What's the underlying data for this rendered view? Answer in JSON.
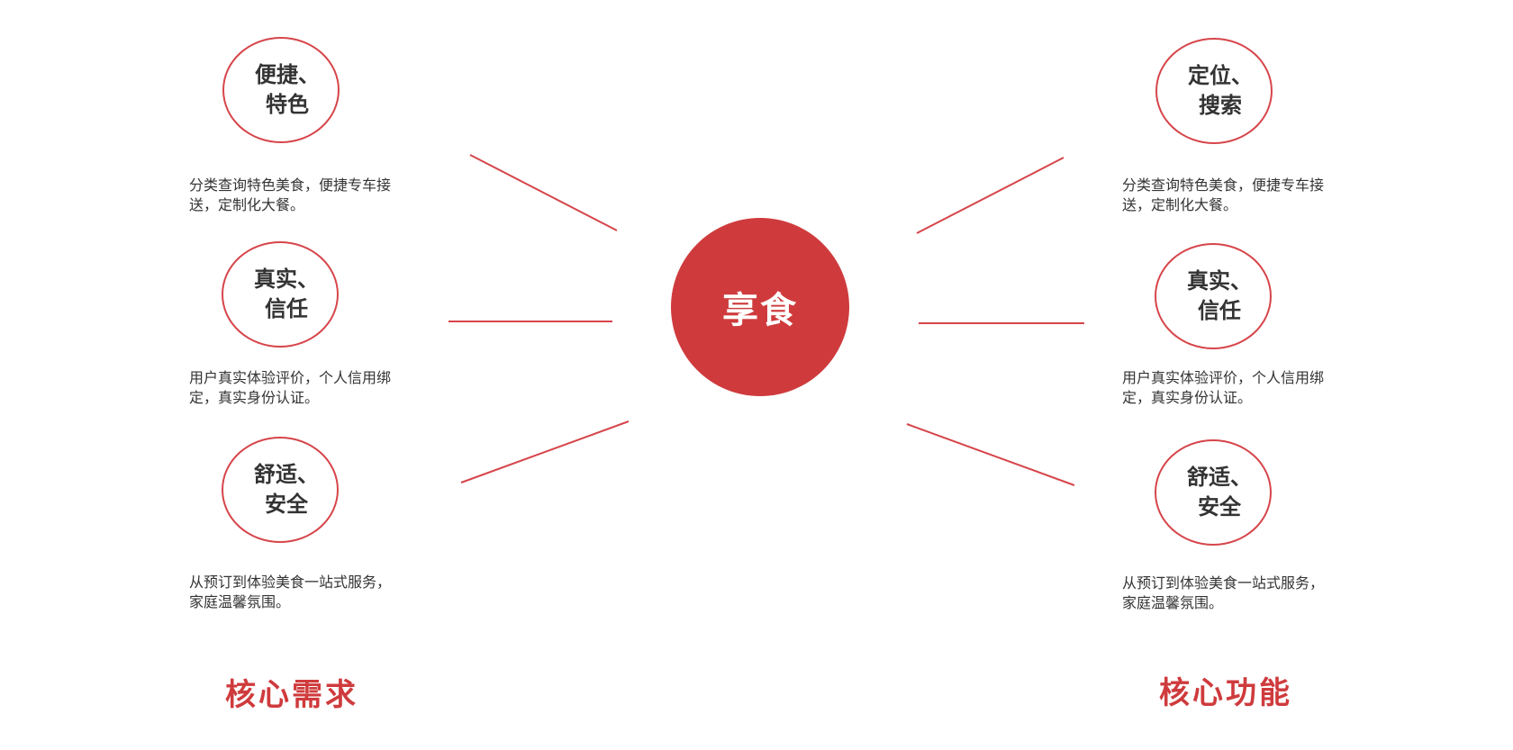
{
  "colors": {
    "accent": "#cf3b3d",
    "text": "#333333",
    "background": "#ffffff"
  },
  "center": {
    "label": "享食"
  },
  "left": {
    "title": "核心需求",
    "items": [
      {
        "line1": "便捷、",
        "line2": "特色",
        "desc": "分类查询特色美食，便捷专车接送，定制化大餐。"
      },
      {
        "line1": "真实、",
        "line2": "信任",
        "desc": "用户真实体验评价，个人信用绑定，真实身份认证。"
      },
      {
        "line1": "舒适、",
        "line2": "安全",
        "desc": "从预订到体验美食一站式服务，家庭温馨氛围。"
      }
    ]
  },
  "right": {
    "title": "核心功能",
    "items": [
      {
        "line1": "定位、",
        "line2": "搜索",
        "desc": "分类查询特色美食，便捷专车接送，定制化大餐。"
      },
      {
        "line1": "真实、",
        "line2": "信任",
        "desc": "用户真实体验评价，个人信用绑定，真实身份认证。"
      },
      {
        "line1": "舒适、",
        "line2": "安全",
        "desc": "从预订到体验美食一站式服务，家庭温馨氛围。"
      }
    ]
  }
}
